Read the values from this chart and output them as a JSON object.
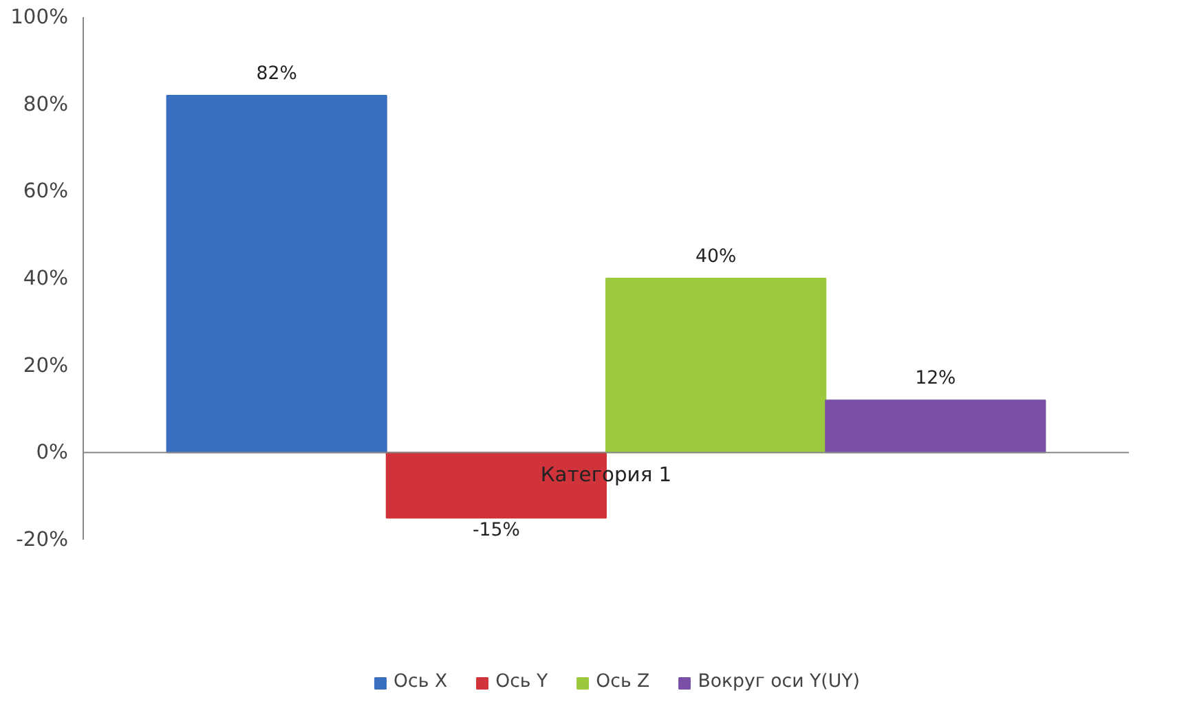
{
  "chart_data": {
    "type": "bar",
    "categories": [
      "Категория 1"
    ],
    "series": [
      {
        "name": "Ось X",
        "color": "#3a6fc0",
        "values": [
          82
        ],
        "value_labels": [
          "82%"
        ]
      },
      {
        "name": "Ось Y",
        "color": "#d0343a",
        "values": [
          -15
        ],
        "value_labels": [
          "-15%"
        ]
      },
      {
        "name": "Ось Z",
        "color": "#9bc83c",
        "values": [
          40
        ],
        "value_labels": [
          "40%"
        ]
      },
      {
        "name": "Вокруг оси Y(UY)",
        "color": "#7a4fa8",
        "values": [
          12
        ],
        "value_labels": [
          "12%"
        ]
      }
    ],
    "ylim": [
      -20,
      100
    ],
    "yticks": [
      {
        "value": -20,
        "label": "-20%"
      },
      {
        "value": 0,
        "label": "0%"
      },
      {
        "value": 20,
        "label": "20%"
      },
      {
        "value": 40,
        "label": "40%"
      },
      {
        "value": 60,
        "label": "60%"
      },
      {
        "value": 80,
        "label": "80%"
      },
      {
        "value": 100,
        "label": "100%"
      }
    ],
    "ref_lines": [
      {
        "axis": "y",
        "value": 0,
        "color": "#888888"
      }
    ],
    "grid": false,
    "legend": "bottom"
  }
}
